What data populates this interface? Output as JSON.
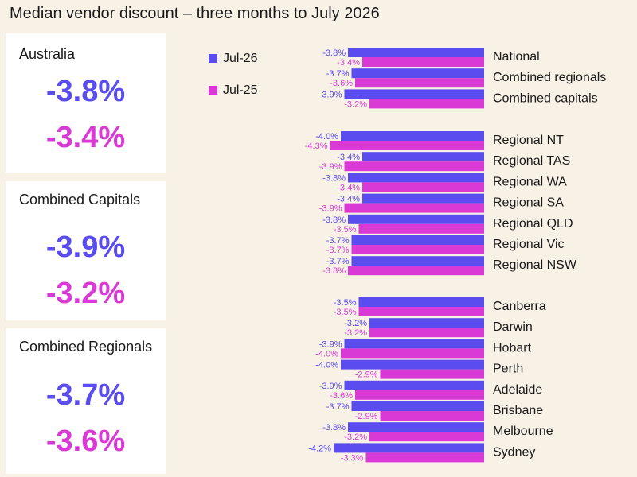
{
  "title": "Median vendor discount – three months to July 2026",
  "colors": {
    "current": "#5b4cf0",
    "previous": "#d93ad6",
    "background": "#f7f1e6",
    "card": "#ffffff"
  },
  "cards": [
    {
      "label": "Australia",
      "current": "-3.8%",
      "previous": "-3.4%"
    },
    {
      "label": "Combined Capitals",
      "current": "-3.9%",
      "previous": "-3.2%"
    },
    {
      "label": "Combined Regionals",
      "current": "-3.7%",
      "previous": "-3.6%"
    }
  ],
  "legend": {
    "current": "Jul-26",
    "previous": "Jul-25"
  },
  "chart_data": {
    "type": "bar",
    "orientation": "horizontal",
    "series": [
      {
        "name": "Jul-26",
        "values": [
          -3.8,
          -3.7,
          -3.9,
          -4.0,
          -3.4,
          -3.8,
          -3.4,
          -3.8,
          -3.7,
          -3.7,
          -3.5,
          -3.2,
          -3.9,
          -4.0,
          -3.9,
          -3.7,
          -3.8,
          -4.2
        ]
      },
      {
        "name": "Jul-25",
        "values": [
          -3.4,
          -3.6,
          -3.2,
          -4.3,
          -3.9,
          -3.4,
          -3.9,
          -3.5,
          -3.7,
          -3.8,
          -3.5,
          -3.2,
          -4.0,
          -2.9,
          -3.6,
          -2.9,
          -3.2,
          -3.3
        ]
      }
    ],
    "categories": [
      "National",
      "Combined regionals",
      "Combined capitals",
      "Regional NT",
      "Regional TAS",
      "Regional WA",
      "Regional SA",
      "Regional QLD",
      "Regional Vic",
      "Regional NSW",
      "Canberra",
      "Darwin",
      "Hobart",
      "Perth",
      "Adelaide",
      "Brisbane",
      "Melbourne",
      "Sydney"
    ],
    "groups": [
      [
        0,
        1,
        2
      ],
      [
        3,
        4,
        5,
        6,
        7,
        8,
        9
      ],
      [
        10,
        11,
        12,
        13,
        14,
        15,
        16,
        17
      ]
    ],
    "value_labels": {
      "Jul-26": [
        "-3.8%",
        "-3.7%",
        "-3.9%",
        "-4.0%",
        "-3.4%",
        "-3.8%",
        "-3.4%",
        "-3.8%",
        "-3.7%",
        "-3.7%",
        "-3.5%",
        "-3.2%",
        "-3.9%",
        "-4.0%",
        "-3.9%",
        "-3.7%",
        "-3.8%",
        "-4.2%"
      ],
      "Jul-25": [
        "-3.4%",
        "-3.6%",
        "-3.2%",
        "-4.3%",
        "-3.9%",
        "-3.4%",
        "-3.9%",
        "-3.5%",
        "-3.7%",
        "-3.8%",
        "-3.5%",
        "-3.2%",
        "-4.0%",
        "-2.9%",
        "-3.6%",
        "-2.9%",
        "-3.2%",
        "-3.3%"
      ]
    },
    "grid": false,
    "legend_position": "left"
  }
}
